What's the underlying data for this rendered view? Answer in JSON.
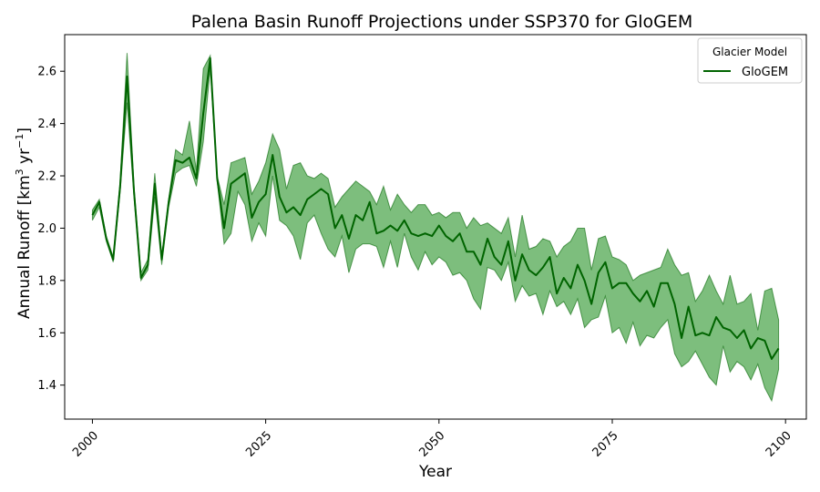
{
  "chart_data": {
    "type": "line",
    "title": "Palena Basin Runoff Projections under SSP370 for GloGEM",
    "xlabel": "Year",
    "ylabel": "Annual Runoff [km³ yr⁻¹]",
    "ylabel_parts": {
      "base": "Annual Runoff [km",
      "sup1": "3",
      "mid": " yr",
      "sup2": "−1",
      "end": "]"
    },
    "xlim": [
      1996,
      2103
    ],
    "ylim": [
      1.27,
      2.74
    ],
    "xticks": [
      2000,
      2025,
      2050,
      2075,
      2100
    ],
    "yticks": [
      1.4,
      1.6,
      1.8,
      2.0,
      2.2,
      2.4,
      2.6
    ],
    "ytick_labels": [
      "1.4",
      "1.6",
      "1.8",
      "2.0",
      "2.2",
      "2.4",
      "2.6"
    ],
    "grid": false,
    "legend": {
      "title": "Glacier Model",
      "placement": "upper-right",
      "entries": [
        "GloGEM"
      ]
    },
    "colors": {
      "line": "#006400",
      "band": "#66b366"
    },
    "x": [
      2000,
      2001,
      2002,
      2003,
      2004,
      2005,
      2006,
      2007,
      2008,
      2009,
      2010,
      2011,
      2012,
      2013,
      2014,
      2015,
      2016,
      2017,
      2018,
      2019,
      2020,
      2021,
      2022,
      2023,
      2024,
      2025,
      2026,
      2027,
      2028,
      2029,
      2030,
      2031,
      2032,
      2033,
      2034,
      2035,
      2036,
      2037,
      2038,
      2039,
      2040,
      2041,
      2042,
      2043,
      2044,
      2045,
      2046,
      2047,
      2048,
      2049,
      2050,
      2051,
      2052,
      2053,
      2054,
      2055,
      2056,
      2057,
      2058,
      2059,
      2060,
      2061,
      2062,
      2063,
      2064,
      2065,
      2066,
      2067,
      2068,
      2069,
      2070,
      2071,
      2072,
      2073,
      2074,
      2075,
      2076,
      2077,
      2078,
      2079,
      2080,
      2081,
      2082,
      2083,
      2084,
      2085,
      2086,
      2087,
      2088,
      2089,
      2090,
      2091,
      2092,
      2093,
      2094,
      2095,
      2096,
      2097,
      2098,
      2099
    ],
    "series": [
      {
        "name": "GloGEM",
        "mean": [
          2.05,
          2.1,
          1.96,
          1.88,
          2.16,
          2.58,
          2.14,
          1.81,
          1.86,
          2.17,
          1.88,
          2.1,
          2.26,
          2.25,
          2.27,
          2.19,
          2.44,
          2.65,
          2.19,
          2.0,
          2.17,
          2.19,
          2.21,
          2.04,
          2.1,
          2.13,
          2.28,
          2.12,
          2.06,
          2.08,
          2.05,
          2.11,
          2.13,
          2.15,
          2.13,
          2.0,
          2.05,
          1.96,
          2.05,
          2.03,
          2.1,
          1.98,
          1.99,
          2.01,
          1.99,
          2.03,
          1.98,
          1.97,
          1.98,
          1.97,
          2.01,
          1.97,
          1.95,
          1.98,
          1.91,
          1.91,
          1.86,
          1.96,
          1.89,
          1.86,
          1.95,
          1.8,
          1.9,
          1.84,
          1.82,
          1.85,
          1.89,
          1.75,
          1.81,
          1.77,
          1.86,
          1.8,
          1.71,
          1.83,
          1.87,
          1.77,
          1.79,
          1.79,
          1.75,
          1.72,
          1.76,
          1.7,
          1.79,
          1.79,
          1.71,
          1.58,
          1.7,
          1.59,
          1.6,
          1.59,
          1.66,
          1.62,
          1.61,
          1.58,
          1.61,
          1.54,
          1.58,
          1.57,
          1.5,
          1.54
        ],
        "upper": [
          2.07,
          2.11,
          1.97,
          1.89,
          2.18,
          2.67,
          2.16,
          1.83,
          1.88,
          2.21,
          1.89,
          2.11,
          2.3,
          2.28,
          2.41,
          2.22,
          2.61,
          2.66,
          2.2,
          2.09,
          2.25,
          2.26,
          2.27,
          2.13,
          2.18,
          2.25,
          2.36,
          2.3,
          2.15,
          2.24,
          2.25,
          2.2,
          2.19,
          2.21,
          2.19,
          2.08,
          2.12,
          2.15,
          2.18,
          2.16,
          2.14,
          2.09,
          2.16,
          2.07,
          2.13,
          2.09,
          2.06,
          2.09,
          2.09,
          2.05,
          2.06,
          2.04,
          2.06,
          2.06,
          2.0,
          2.04,
          2.01,
          2.02,
          2.0,
          1.98,
          2.04,
          1.89,
          2.05,
          1.92,
          1.93,
          1.96,
          1.95,
          1.89,
          1.93,
          1.95,
          2.0,
          2.0,
          1.84,
          1.96,
          1.97,
          1.89,
          1.88,
          1.86,
          1.8,
          1.82,
          1.83,
          1.84,
          1.85,
          1.92,
          1.86,
          1.82,
          1.83,
          1.72,
          1.76,
          1.82,
          1.76,
          1.71,
          1.82,
          1.71,
          1.72,
          1.75,
          1.61,
          1.76,
          1.77,
          1.65
        ],
        "lower": [
          2.03,
          2.08,
          1.95,
          1.87,
          2.14,
          2.48,
          2.12,
          1.8,
          1.84,
          2.12,
          1.86,
          2.08,
          2.21,
          2.23,
          2.24,
          2.16,
          2.33,
          2.61,
          2.18,
          1.94,
          1.98,
          2.14,
          2.09,
          1.95,
          2.02,
          1.97,
          2.2,
          2.03,
          2.01,
          1.97,
          1.88,
          2.02,
          2.05,
          1.98,
          1.92,
          1.89,
          1.97,
          1.83,
          1.92,
          1.94,
          1.94,
          1.93,
          1.85,
          1.95,
          1.85,
          1.98,
          1.89,
          1.84,
          1.91,
          1.86,
          1.89,
          1.87,
          1.82,
          1.83,
          1.8,
          1.73,
          1.69,
          1.85,
          1.84,
          1.8,
          1.87,
          1.72,
          1.78,
          1.74,
          1.75,
          1.67,
          1.76,
          1.7,
          1.72,
          1.67,
          1.73,
          1.62,
          1.65,
          1.66,
          1.74,
          1.6,
          1.62,
          1.56,
          1.64,
          1.55,
          1.59,
          1.58,
          1.62,
          1.65,
          1.52,
          1.47,
          1.49,
          1.53,
          1.48,
          1.43,
          1.4,
          1.55,
          1.45,
          1.49,
          1.47,
          1.42,
          1.48,
          1.39,
          1.34,
          1.46
        ]
      }
    ]
  }
}
